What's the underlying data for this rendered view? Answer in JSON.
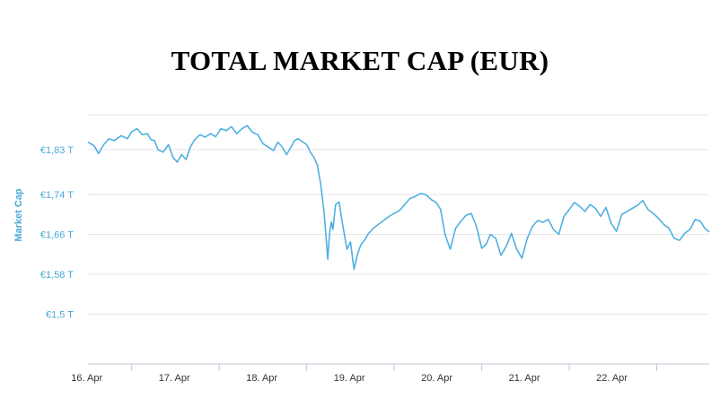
{
  "title": "TOTAL MARKET CAP (EUR)",
  "chart_data": {
    "type": "line",
    "title": "TOTAL MARKET CAP (EUR)",
    "ylabel": "Market Cap",
    "xlabel": "",
    "x_ticks": [
      "16. Apr",
      "17. Apr",
      "18. Apr",
      "19. Apr",
      "20. Apr",
      "21. Apr",
      "22. Apr"
    ],
    "y_ticks": [
      {
        "value": 1.5,
        "label": "€1,5 T"
      },
      {
        "value": 1.58,
        "label": "€1,58 T"
      },
      {
        "value": 1.66,
        "label": "€1,66 T"
      },
      {
        "value": 1.74,
        "label": "€1,74 T"
      },
      {
        "value": 1.83,
        "label": "€1,83 T"
      }
    ],
    "xlim": [
      15.5,
      22.6
    ],
    "ylim": [
      1.4,
      1.9
    ],
    "grid": true,
    "line_color": "#4fb0e0",
    "series": [
      {
        "x": [
          15.5,
          15.57,
          15.62,
          15.68,
          15.74,
          15.8,
          15.88,
          15.95,
          16.0,
          16.06,
          16.12,
          16.18,
          16.22,
          16.26,
          16.3,
          16.36,
          16.42,
          16.47,
          16.52,
          16.57,
          16.62,
          16.67,
          16.72,
          16.78,
          16.84,
          16.9,
          16.96,
          17.02,
          17.08,
          17.14,
          17.2,
          17.26,
          17.32,
          17.38,
          17.44,
          17.5,
          17.56,
          17.62,
          17.67,
          17.72,
          17.77,
          17.82,
          17.86,
          17.9,
          17.95,
          18.0,
          18.04,
          18.08,
          18.12,
          18.16,
          18.2,
          18.24,
          18.26,
          18.28,
          18.3,
          18.33,
          18.37,
          18.41,
          18.46,
          18.5,
          18.54,
          18.58,
          18.62,
          18.66,
          18.7,
          18.76,
          18.82,
          18.88,
          18.94,
          19.0,
          19.06,
          19.12,
          19.18,
          19.24,
          19.3,
          19.36,
          19.42,
          19.48,
          19.53,
          19.58,
          19.64,
          19.7,
          19.76,
          19.82,
          19.88,
          19.94,
          20.0,
          20.05,
          20.1,
          20.16,
          20.22,
          20.28,
          20.34,
          20.4,
          20.46,
          20.52,
          20.58,
          20.64,
          20.7,
          20.76,
          20.82,
          20.88,
          20.94,
          21.0,
          21.06,
          21.12,
          21.18,
          21.24,
          21.3,
          21.36,
          21.42,
          21.48,
          21.54,
          21.6,
          21.66,
          21.72,
          21.78,
          21.84,
          21.9,
          21.96,
          22.02,
          22.08,
          22.14,
          22.2,
          22.26,
          22.32,
          22.38,
          22.44,
          22.5,
          22.55,
          22.6
        ],
        "y": [
          1.845,
          1.838,
          1.822,
          1.84,
          1.852,
          1.848,
          1.858,
          1.852,
          1.866,
          1.872,
          1.86,
          1.862,
          1.85,
          1.848,
          1.83,
          1.825,
          1.84,
          1.815,
          1.805,
          1.82,
          1.81,
          1.835,
          1.85,
          1.86,
          1.855,
          1.862,
          1.856,
          1.872,
          1.868,
          1.876,
          1.862,
          1.872,
          1.878,
          1.865,
          1.86,
          1.842,
          1.835,
          1.828,
          1.845,
          1.835,
          1.82,
          1.835,
          1.848,
          1.852,
          1.846,
          1.84,
          1.825,
          1.815,
          1.8,
          1.76,
          1.7,
          1.61,
          1.66,
          1.685,
          1.67,
          1.72,
          1.725,
          1.68,
          1.63,
          1.645,
          1.59,
          1.62,
          1.64,
          1.648,
          1.66,
          1.672,
          1.68,
          1.688,
          1.696,
          1.702,
          1.708,
          1.72,
          1.732,
          1.736,
          1.742,
          1.74,
          1.73,
          1.724,
          1.71,
          1.66,
          1.63,
          1.672,
          1.686,
          1.698,
          1.702,
          1.676,
          1.632,
          1.64,
          1.66,
          1.652,
          1.618,
          1.636,
          1.662,
          1.63,
          1.612,
          1.652,
          1.676,
          1.688,
          1.684,
          1.69,
          1.67,
          1.66,
          1.696,
          1.71,
          1.724,
          1.716,
          1.706,
          1.72,
          1.712,
          1.696,
          1.714,
          1.682,
          1.666,
          1.7,
          1.706,
          1.712,
          1.718,
          1.728,
          1.71,
          1.702,
          1.692,
          1.68,
          1.672,
          1.652,
          1.648,
          1.662,
          1.67,
          1.69,
          1.686,
          1.672,
          1.665
        ]
      }
    ]
  }
}
